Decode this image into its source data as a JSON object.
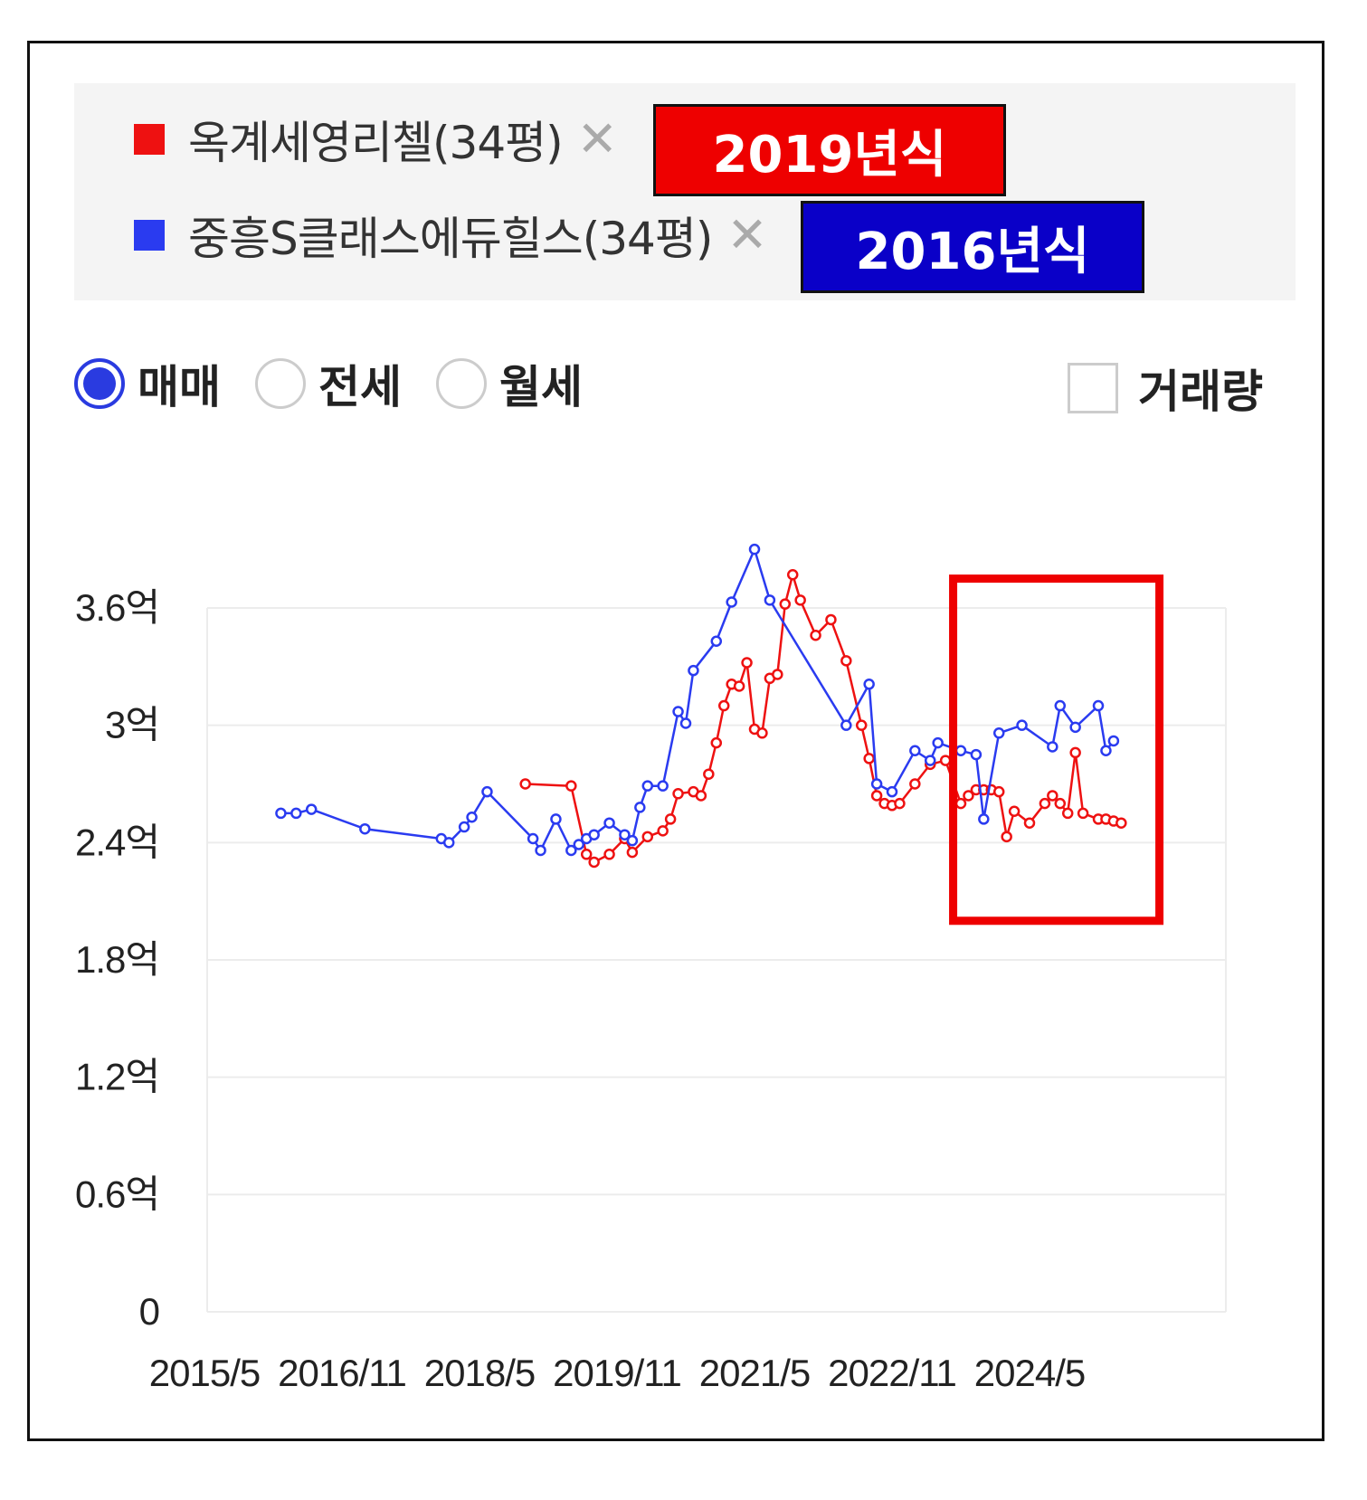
{
  "legend": [
    {
      "name": "옥계세영리첼(34평)",
      "color": "#ee1111",
      "close": "✕",
      "badge": "2019년식",
      "badge_bg": "#ee0000"
    },
    {
      "name": "중흥S클래스에듀힐스(34평)",
      "color": "#2a3bf0",
      "close": "✕",
      "badge": "2016년식",
      "badge_bg": "#0a00c8"
    }
  ],
  "filters": {
    "radios": [
      {
        "label": "매매",
        "checked": true
      },
      {
        "label": "전세",
        "checked": false
      },
      {
        "label": "월세",
        "checked": false
      }
    ],
    "volume": {
      "label": "거래량",
      "checked": false
    }
  },
  "highlight_color": "#ee0000",
  "chart_data": {
    "type": "line",
    "title": "",
    "xlabel": "",
    "ylabel": "",
    "ylim": [
      0,
      3.6
    ],
    "y_ticks": [
      {
        "value": 3.6,
        "label": "3.6억"
      },
      {
        "value": 3.0,
        "label": "3억"
      },
      {
        "value": 2.4,
        "label": "2.4억"
      },
      {
        "value": 1.8,
        "label": "1.8억"
      },
      {
        "value": 1.2,
        "label": "1.2억"
      },
      {
        "value": 0.6,
        "label": "0.6억"
      },
      {
        "value": 0,
        "label": "0"
      }
    ],
    "x_ticks": [
      "2015/5",
      "2016/11",
      "2018/5",
      "2019/11",
      "2021/5",
      "2022/11",
      "2024/5"
    ],
    "grid": true,
    "highlight_range": {
      "from": "2023/7",
      "to": "2025/10",
      "y": [
        2.0,
        3.75
      ]
    },
    "series": [
      {
        "name": "옥계세영리첼(34평)",
        "color": "#ee1111",
        "points": [
          [
            "2018/11",
            2.7
          ],
          [
            "2019/5",
            2.69
          ],
          [
            "2019/7",
            2.34
          ],
          [
            "2019/8",
            2.3
          ],
          [
            "2019/10",
            2.34
          ],
          [
            "2019/12",
            2.42
          ],
          [
            "2020/1",
            2.35
          ],
          [
            "2020/3",
            2.43
          ],
          [
            "2020/5",
            2.46
          ],
          [
            "2020/6",
            2.52
          ],
          [
            "2020/7",
            2.65
          ],
          [
            "2020/9",
            2.66
          ],
          [
            "2020/10",
            2.64
          ],
          [
            "2020/11",
            2.75
          ],
          [
            "2020/12",
            2.91
          ],
          [
            "2021/1",
            3.1
          ],
          [
            "2021/2",
            3.21
          ],
          [
            "2021/3",
            3.2
          ],
          [
            "2021/4",
            3.32
          ],
          [
            "2021/5",
            2.98
          ],
          [
            "2021/6",
            2.96
          ],
          [
            "2021/7",
            3.24
          ],
          [
            "2021/8",
            3.26
          ],
          [
            "2021/9",
            3.62
          ],
          [
            "2021/10",
            3.77
          ],
          [
            "2021/11",
            3.64
          ],
          [
            "2022/1",
            3.46
          ],
          [
            "2022/3",
            3.54
          ],
          [
            "2022/5",
            3.33
          ],
          [
            "2022/7",
            3.0
          ],
          [
            "2022/8",
            2.83
          ],
          [
            "2022/9",
            2.64
          ],
          [
            "2022/10",
            2.6
          ],
          [
            "2022/11",
            2.59
          ],
          [
            "2022/12",
            2.6
          ],
          [
            "2023/2",
            2.7
          ],
          [
            "2023/4",
            2.8
          ],
          [
            "2023/6",
            2.82
          ],
          [
            "2023/8",
            2.6
          ],
          [
            "2023/9",
            2.64
          ],
          [
            "2023/10",
            2.67
          ],
          [
            "2023/11",
            2.67
          ],
          [
            "2023/12",
            2.67
          ],
          [
            "2024/1",
            2.66
          ],
          [
            "2024/2",
            2.43
          ],
          [
            "2024/3",
            2.56
          ],
          [
            "2024/5",
            2.5
          ],
          [
            "2024/7",
            2.6
          ],
          [
            "2024/8",
            2.64
          ],
          [
            "2024/9",
            2.6
          ],
          [
            "2024/10",
            2.55
          ],
          [
            "2024/11",
            2.86
          ],
          [
            "2024/12",
            2.55
          ],
          [
            "2025/2",
            2.52
          ],
          [
            "2025/3",
            2.52
          ],
          [
            "2025/4",
            2.51
          ],
          [
            "2025/5",
            2.5
          ]
        ]
      },
      {
        "name": "중흥S클래스에듀힐스(34평)",
        "color": "#2a3bf0",
        "points": [
          [
            "2016/3",
            2.55
          ],
          [
            "2016/5",
            2.55
          ],
          [
            "2016/7",
            2.57
          ],
          [
            "2017/2",
            2.47
          ],
          [
            "2017/12",
            2.42
          ],
          [
            "2018/1",
            2.4
          ],
          [
            "2018/3",
            2.48
          ],
          [
            "2018/4",
            2.53
          ],
          [
            "2018/6",
            2.66
          ],
          [
            "2018/12",
            2.42
          ],
          [
            "2019/1",
            2.36
          ],
          [
            "2019/3",
            2.52
          ],
          [
            "2019/5",
            2.36
          ],
          [
            "2019/6",
            2.39
          ],
          [
            "2019/7",
            2.42
          ],
          [
            "2019/8",
            2.44
          ],
          [
            "2019/10",
            2.5
          ],
          [
            "2019/12",
            2.44
          ],
          [
            "2020/1",
            2.41
          ],
          [
            "2020/2",
            2.58
          ],
          [
            "2020/3",
            2.69
          ],
          [
            "2020/5",
            2.69
          ],
          [
            "2020/7",
            3.07
          ],
          [
            "2020/8",
            3.01
          ],
          [
            "2020/9",
            3.28
          ],
          [
            "2020/12",
            3.43
          ],
          [
            "2021/2",
            3.63
          ],
          [
            "2021/5",
            3.9
          ],
          [
            "2021/7",
            3.64
          ],
          [
            "2022/5",
            3.0
          ],
          [
            "2022/8",
            3.21
          ],
          [
            "2022/9",
            2.7
          ],
          [
            "2022/11",
            2.66
          ],
          [
            "2023/2",
            2.87
          ],
          [
            "2023/4",
            2.82
          ],
          [
            "2023/5",
            2.91
          ],
          [
            "2023/8",
            2.87
          ],
          [
            "2023/10",
            2.85
          ],
          [
            "2023/11",
            2.52
          ],
          [
            "2024/1",
            2.96
          ],
          [
            "2024/4",
            3.0
          ],
          [
            "2024/8",
            2.89
          ],
          [
            "2024/9",
            3.1
          ],
          [
            "2024/11",
            2.99
          ],
          [
            "2025/2",
            3.1
          ],
          [
            "2025/3",
            2.87
          ],
          [
            "2025/4",
            2.92
          ]
        ]
      }
    ]
  }
}
